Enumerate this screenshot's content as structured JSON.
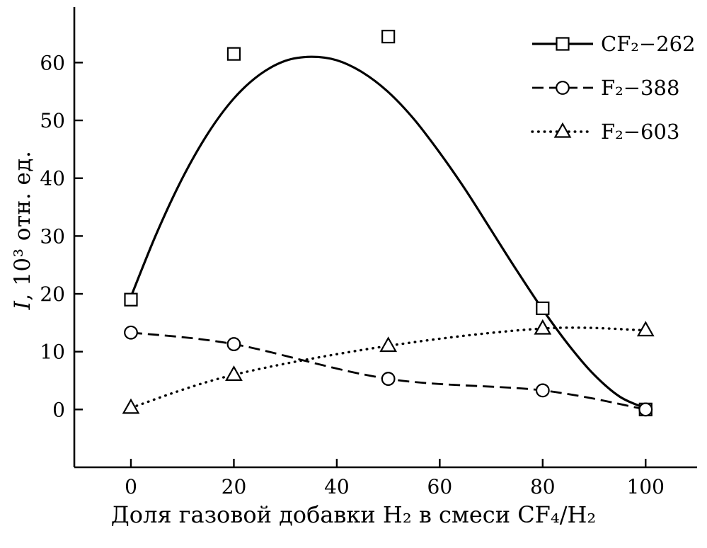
{
  "figure": {
    "background": "#ffffff",
    "ink_color": "#000000"
  },
  "chart_data": {
    "type": "line",
    "title": "",
    "xlabel": "Доля газовой добавки H₂ в смеси CF₄/H₂",
    "ylabel_var": "I",
    "ylabel_rest": ", 10³ отн. ед.",
    "xticks": [
      0,
      20,
      40,
      60,
      80,
      100
    ],
    "yticks": [
      0,
      10,
      20,
      30,
      40,
      50,
      60
    ],
    "xlim": [
      -11,
      110
    ],
    "ylim": [
      -10,
      69.6
    ],
    "grid": false,
    "legend_position": "top-right",
    "series": [
      {
        "name": "CF₂−262",
        "line": "solid",
        "marker": "square",
        "points": [
          [
            0,
            19
          ],
          [
            20,
            61.5
          ],
          [
            50,
            64.5
          ],
          [
            80,
            17.5
          ],
          [
            100,
            0
          ]
        ],
        "fit_curve": [
          [
            0,
            19.5
          ],
          [
            5,
            30.5
          ],
          [
            10,
            40
          ],
          [
            15,
            47.8
          ],
          [
            20,
            53.8
          ],
          [
            25,
            57.9
          ],
          [
            30,
            60.3
          ],
          [
            35,
            61
          ],
          [
            40,
            60.4
          ],
          [
            45,
            58.3
          ],
          [
            50,
            54.9
          ],
          [
            55,
            50.2
          ],
          [
            60,
            44.4
          ],
          [
            65,
            38
          ],
          [
            70,
            31
          ],
          [
            75,
            24
          ],
          [
            80,
            17.3
          ],
          [
            85,
            11.2
          ],
          [
            90,
            6
          ],
          [
            95,
            2.2
          ],
          [
            100,
            0.2
          ]
        ]
      },
      {
        "name": "F₂−388",
        "line": "dashed",
        "marker": "circle",
        "points": [
          [
            0,
            13.3
          ],
          [
            20,
            11.3
          ],
          [
            50,
            5.3
          ],
          [
            80,
            3.3
          ],
          [
            100,
            0
          ]
        ]
      },
      {
        "name": "F₂−603",
        "line": "dotted",
        "marker": "triangle",
        "points": [
          [
            0,
            0.3
          ],
          [
            20,
            6
          ],
          [
            50,
            11
          ],
          [
            80,
            14
          ],
          [
            100,
            13.7
          ]
        ]
      }
    ]
  }
}
